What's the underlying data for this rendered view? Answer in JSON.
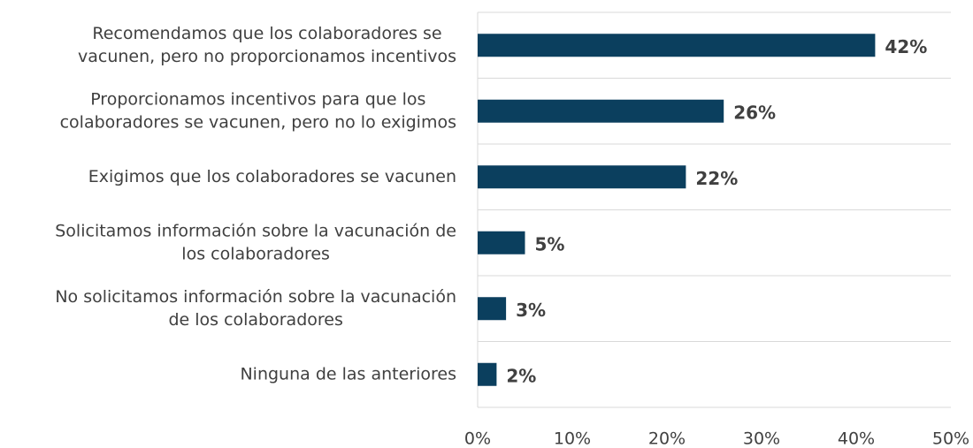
{
  "chart_data": {
    "type": "bar",
    "orientation": "horizontal",
    "categories": [
      [
        "Recomendamos que los colaboradores se",
        "vacunen, pero no proporcionamos incentivos"
      ],
      [
        "Proporcionamos incentivos para que los",
        "colaboradores se vacunen, pero no lo exigimos"
      ],
      [
        "Exigimos que los colaboradores se vacunen"
      ],
      [
        "Solicitamos información sobre la vacunación de",
        "los colaboradores"
      ],
      [
        "No solicitamos información sobre la vacunación",
        "de los colaboradores"
      ],
      [
        "Ninguna de las anteriores"
      ]
    ],
    "values": [
      42,
      26,
      22,
      5,
      3,
      2
    ],
    "value_labels": [
      "42%",
      "26%",
      "22%",
      "5%",
      "3%",
      "2%"
    ],
    "color": "#0b3f5e",
    "xlim": [
      0,
      50
    ],
    "xticks": [
      {
        "value": 0,
        "label": "0%"
      },
      {
        "value": 10,
        "label": "10%"
      },
      {
        "value": 20,
        "label": "20%"
      },
      {
        "value": 30,
        "label": "30%"
      },
      {
        "value": 40,
        "label": "40%"
      },
      {
        "value": 50,
        "label": "50%"
      }
    ]
  }
}
